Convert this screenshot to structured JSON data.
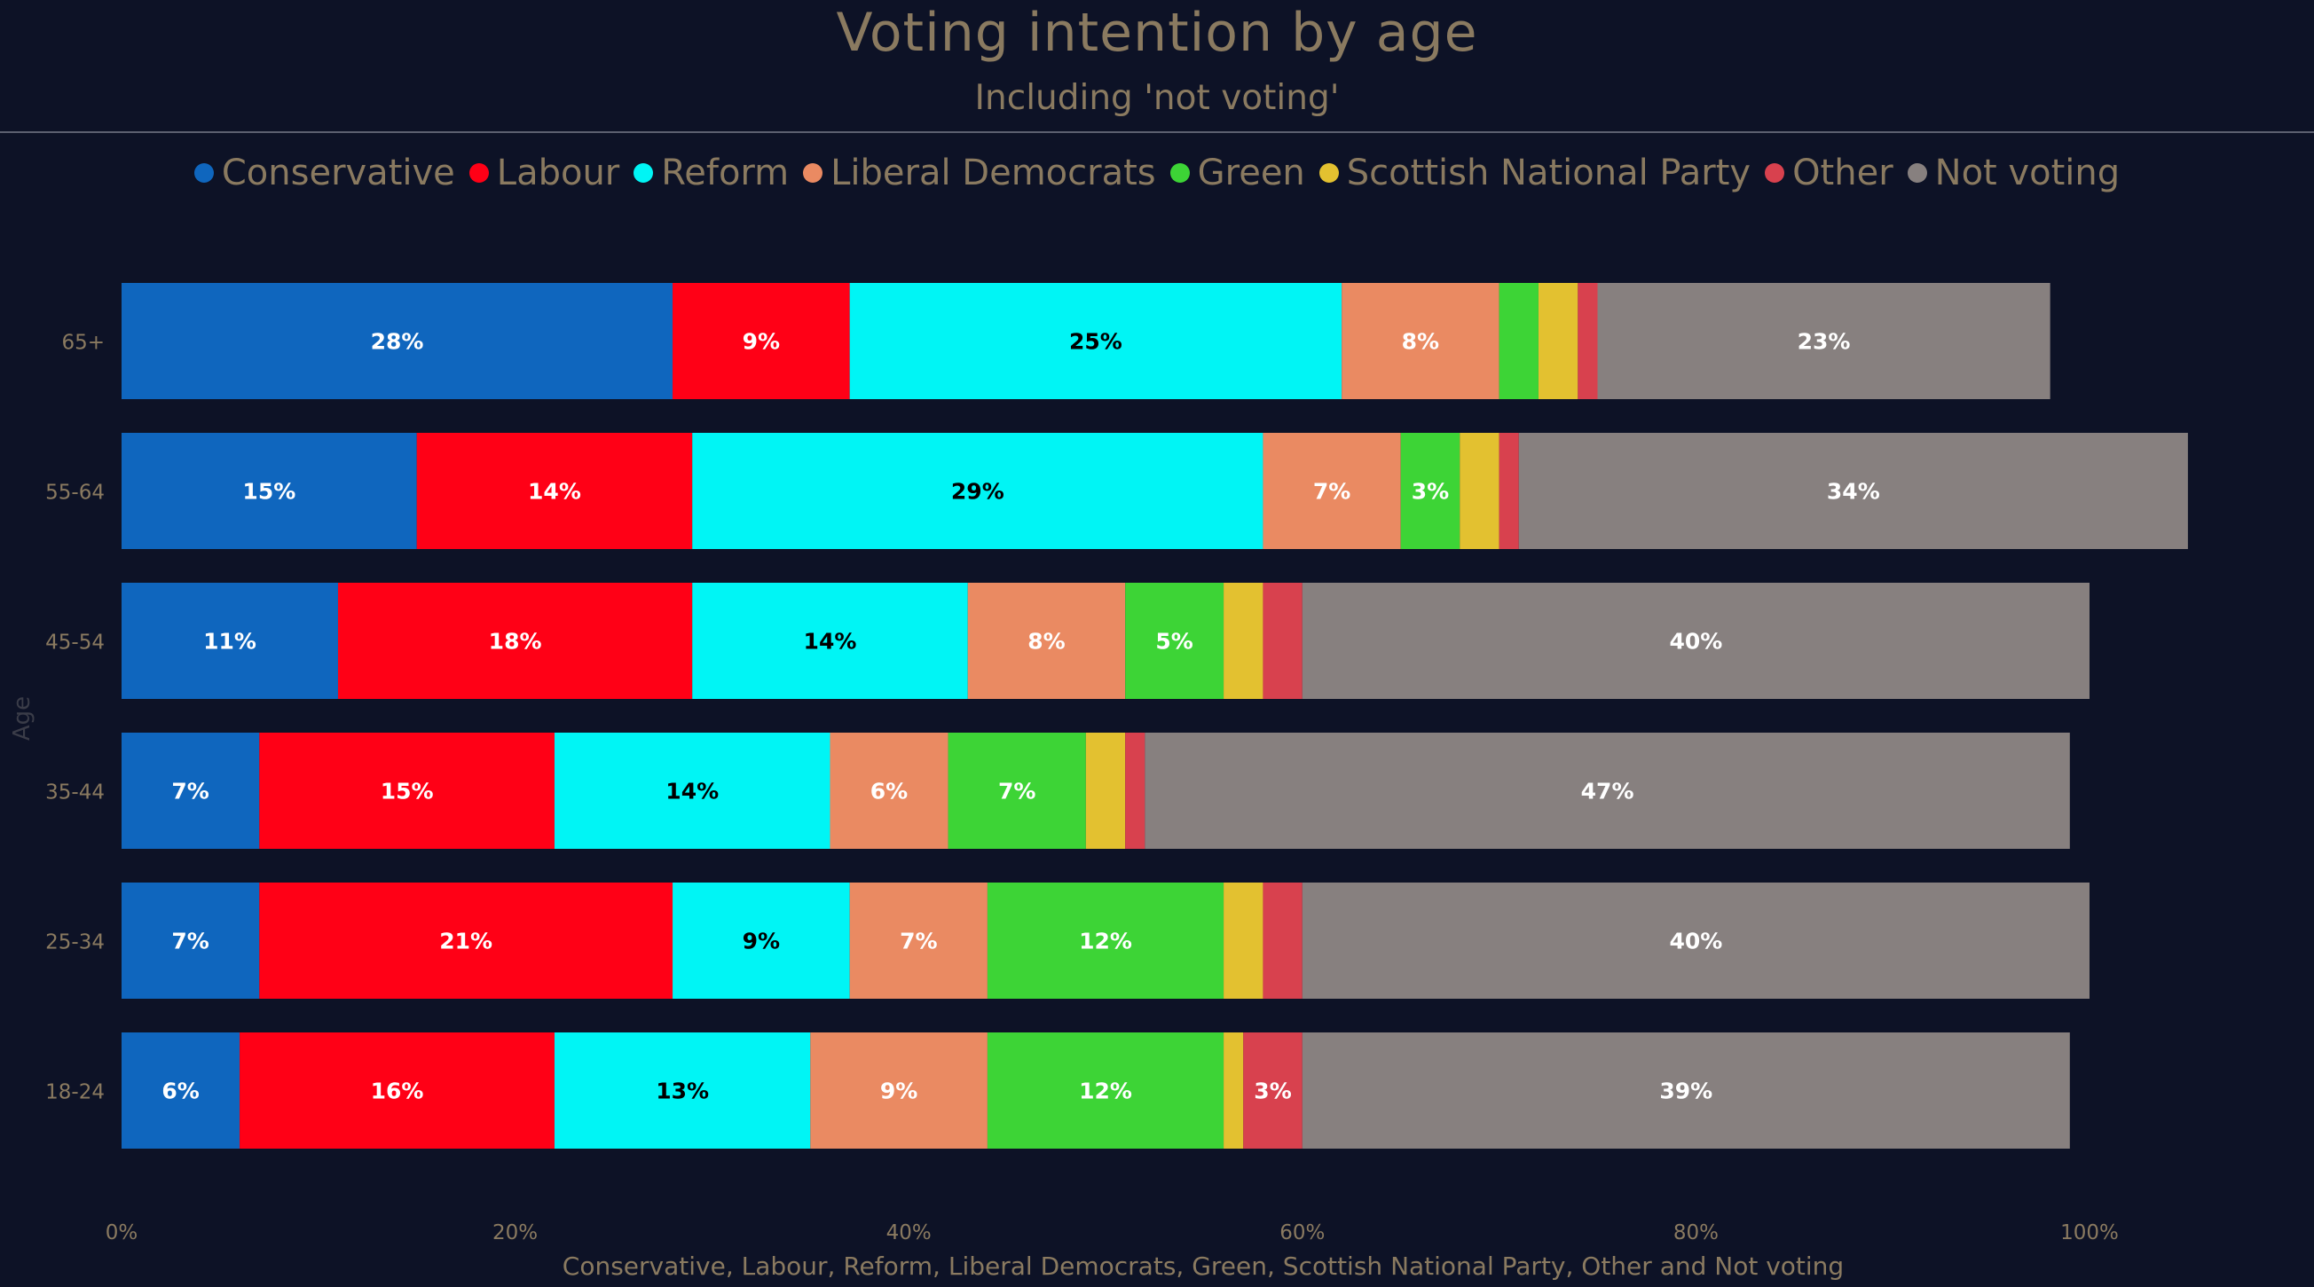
{
  "header": {
    "title": "Voting intention by age",
    "subtitle": "Including 'not voting'"
  },
  "colors": {
    "background": "#0d1226",
    "text_muted": "#8a7a60",
    "bar_label_light": "#ffffff",
    "bar_label_dark": "#000000"
  },
  "chart_data": {
    "type": "bar",
    "orientation": "horizontal",
    "stacked": true,
    "title": "Voting intention by age",
    "subtitle": "Including 'not voting'",
    "xlabel": "Conservative, Labour, Reform, Liberal Democrats, Green, Scottish National Party, Other and Not voting",
    "ylabel": "Age",
    "xlim": [
      0,
      100
    ],
    "x_ticks": [
      "0%",
      "20%",
      "40%",
      "60%",
      "80%",
      "100%"
    ],
    "legend_position": "top",
    "grid": false,
    "categories": [
      "65+",
      "55-64",
      "45-54",
      "35-44",
      "25-34",
      "18-24"
    ],
    "series": [
      {
        "name": "Conservative",
        "color": "#0f66be",
        "label_color": "#ffffff",
        "values": [
          28,
          15,
          11,
          7,
          7,
          6
        ],
        "labels": [
          "28%",
          "15%",
          "11%",
          "7%",
          "7%",
          "6%"
        ]
      },
      {
        "name": "Labour",
        "color": "#ff0016",
        "label_color": "#ffffff",
        "values": [
          9,
          14,
          18,
          15,
          21,
          16
        ],
        "labels": [
          "9%",
          "14%",
          "18%",
          "15%",
          "21%",
          "16%"
        ]
      },
      {
        "name": "Reform",
        "color": "#00f5f5",
        "label_color": "#000000",
        "values": [
          25,
          29,
          14,
          14,
          9,
          13
        ],
        "labels": [
          "25%",
          "29%",
          "14%",
          "14%",
          "9%",
          "13%"
        ]
      },
      {
        "name": "Liberal Democrats",
        "color": "#ea8a62",
        "label_color": "#ffffff",
        "values": [
          8,
          7,
          8,
          6,
          7,
          9
        ],
        "labels": [
          "8%",
          "7%",
          "8%",
          "6%",
          "7%",
          "9%"
        ]
      },
      {
        "name": "Green",
        "color": "#3dd436",
        "label_color": "#ffffff",
        "values": [
          2,
          3,
          5,
          7,
          12,
          12
        ],
        "labels": [
          "",
          "3%",
          "5%",
          "7%",
          "12%",
          "12%"
        ]
      },
      {
        "name": "Scottish National Party",
        "color": "#e3c130",
        "label_color": "#000000",
        "values": [
          2,
          2,
          2,
          2,
          2,
          1
        ],
        "labels": [
          "",
          "",
          "",
          "",
          "",
          ""
        ]
      },
      {
        "name": "Other",
        "color": "#d8414e",
        "label_color": "#ffffff",
        "values": [
          1,
          1,
          2,
          1,
          2,
          3
        ],
        "labels": [
          "",
          "",
          "",
          "",
          "",
          "3%"
        ]
      },
      {
        "name": "Not voting",
        "color": "#87807f",
        "label_color": "#ffffff",
        "values": [
          23,
          34,
          40,
          47,
          40,
          39
        ],
        "labels": [
          "23%",
          "34%",
          "40%",
          "47%",
          "40%",
          "39%"
        ]
      }
    ]
  }
}
